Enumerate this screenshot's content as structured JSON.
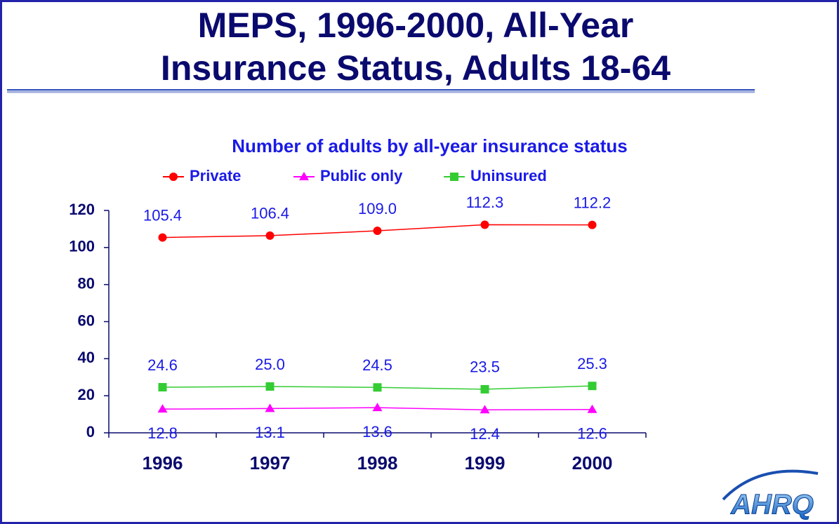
{
  "chart_data": {
    "type": "line",
    "title": [
      "MEPS, 1996-2000, All-Year",
      "Insurance Status, Adults 18-64"
    ],
    "subtitle": "Number of adults by all-year insurance status",
    "categories": [
      "1996",
      "1997",
      "1998",
      "1999",
      "2000"
    ],
    "series": [
      {
        "name": "Private",
        "color": "#ff0000",
        "marker": "circle",
        "label_position": "above",
        "values": [
          105.4,
          106.4,
          109.0,
          112.3,
          112.2
        ],
        "value_labels": [
          "105.4",
          "106.4",
          "109.0",
          "112.3",
          "112.2"
        ]
      },
      {
        "name": "Public only",
        "color": "#ff00ff",
        "marker": "triangle",
        "label_position": "below",
        "values": [
          12.8,
          13.1,
          13.6,
          12.4,
          12.6
        ],
        "value_labels": [
          "12.8",
          "13.1",
          "13.6",
          "12.4",
          "12.6"
        ]
      },
      {
        "name": "Uninsured",
        "color": "#33cc33",
        "marker": "square",
        "label_position": "above",
        "values": [
          24.6,
          25.0,
          24.5,
          23.5,
          25.3
        ],
        "value_labels": [
          "24.6",
          "25.0",
          "24.5",
          "23.5",
          "25.3"
        ]
      }
    ],
    "ylim": [
      0,
      120
    ],
    "yticks": [
      0,
      20,
      40,
      60,
      80,
      100,
      120
    ],
    "grid": false,
    "legend": "top"
  },
  "logo": "AHRQ"
}
